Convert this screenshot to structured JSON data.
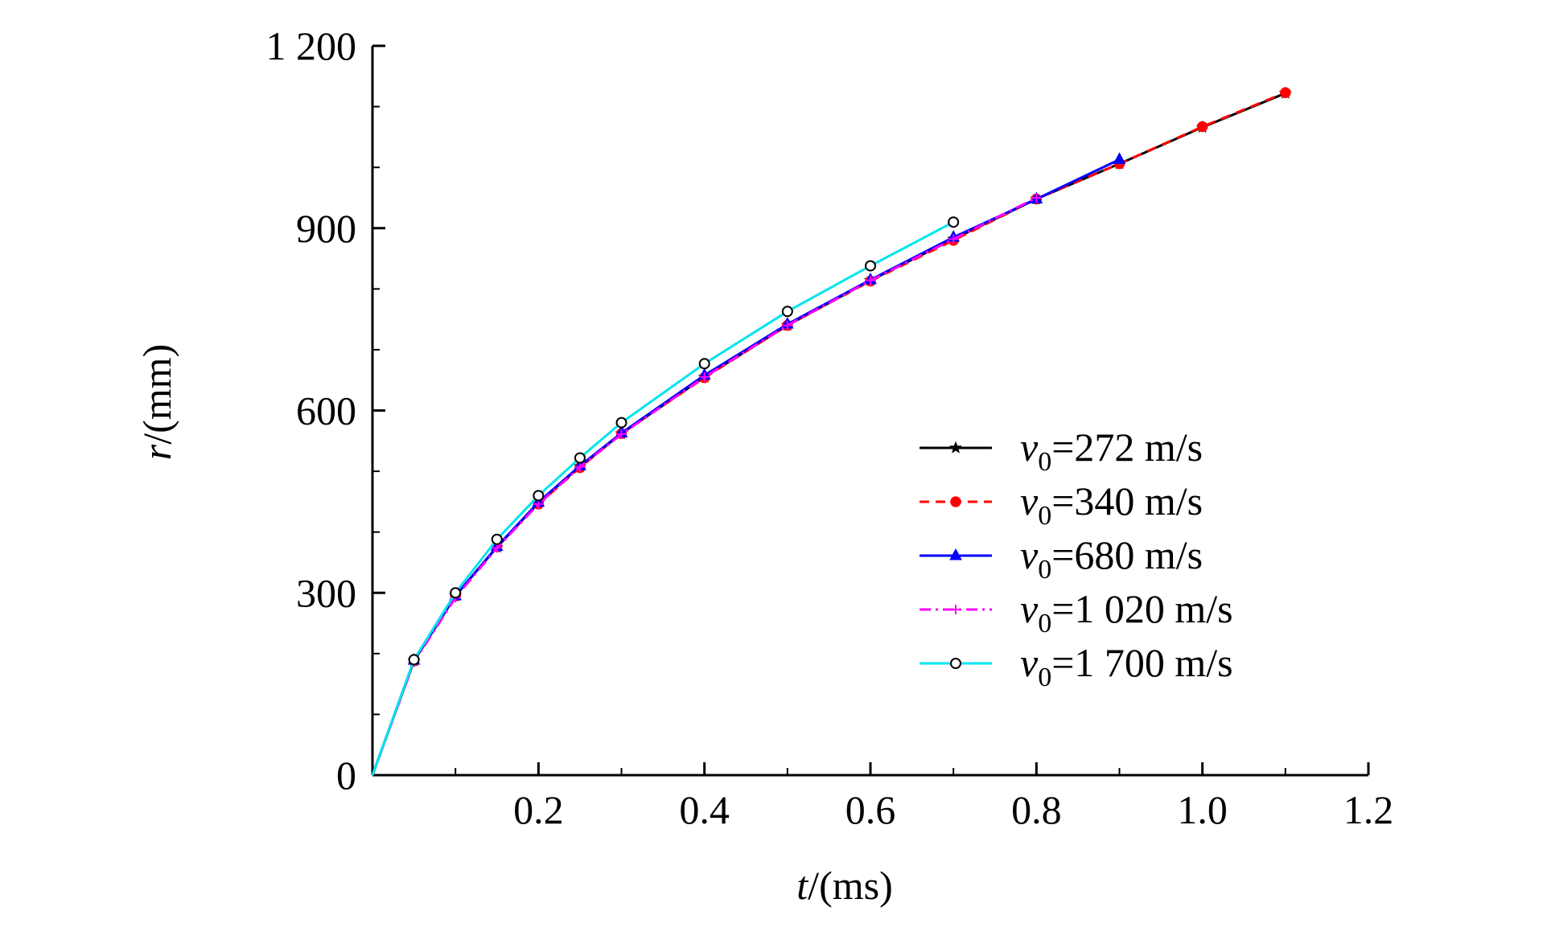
{
  "chart_data": {
    "type": "line",
    "xlabel": {
      "var": "t",
      "unit": "/(ms)"
    },
    "ylabel": {
      "var": "r",
      "unit": "/(mm)"
    },
    "xlim": [
      0,
      1.2
    ],
    "ylim": [
      0,
      1200
    ],
    "x_ticks": [
      {
        "value": 0.2,
        "label": "0.2"
      },
      {
        "value": 0.4,
        "label": "0.4"
      },
      {
        "value": 0.6,
        "label": "0.6"
      },
      {
        "value": 0.8,
        "label": "0.8"
      },
      {
        "value": 1.0,
        "label": "1.0"
      },
      {
        "value": 1.2,
        "label": "1.2"
      }
    ],
    "y_ticks": [
      {
        "value": 0,
        "label": "0"
      },
      {
        "value": 300,
        "label": "300"
      },
      {
        "value": 600,
        "label": "600"
      },
      {
        "value": 900,
        "label": "900"
      },
      {
        "value": 1200,
        "label": "1 200"
      }
    ],
    "grid": false,
    "legend_position": "right",
    "series": [
      {
        "name": "v0=272 m/s",
        "legend": {
          "var": "v",
          "sub": "0",
          "text": "=272 m/s"
        },
        "color": "#000000",
        "dash": "solid",
        "marker": "star",
        "x": [
          0,
          0.05,
          0.1,
          0.15,
          0.2,
          0.25,
          0.3,
          0.4,
          0.5,
          0.6,
          0.7,
          0.8,
          0.9,
          1.0,
          1.1
        ],
        "y": [
          0,
          188,
          295,
          375,
          448,
          508,
          562,
          655,
          740,
          814,
          882,
          948,
          1006,
          1066,
          1122
        ]
      },
      {
        "name": "v0=340 m/s",
        "legend": {
          "var": "v",
          "sub": "0",
          "text": "=340 m/s"
        },
        "color": "#ff0000",
        "dash": "dash",
        "marker": "circle-filled",
        "x": [
          0,
          0.05,
          0.1,
          0.15,
          0.2,
          0.25,
          0.3,
          0.4,
          0.5,
          0.6,
          0.7,
          0.8,
          0.9,
          1.0,
          1.1
        ],
        "y": [
          0,
          188,
          295,
          376,
          446,
          506,
          562,
          654,
          740,
          813,
          880,
          948,
          1006,
          1067,
          1123
        ]
      },
      {
        "name": "v0=680 m/s",
        "legend": {
          "var": "v",
          "sub": "0",
          "text": "=680 m/s"
        },
        "color": "#0000ff",
        "dash": "solid",
        "marker": "triangle",
        "x": [
          0,
          0.05,
          0.1,
          0.15,
          0.2,
          0.25,
          0.3,
          0.4,
          0.5,
          0.6,
          0.7,
          0.8,
          0.9
        ],
        "y": [
          0,
          189,
          295,
          376,
          449,
          509,
          563,
          658,
          742,
          815,
          885,
          948,
          1013
        ]
      },
      {
        "name": "v0=1 020 m/s",
        "legend": {
          "var": "v",
          "sub": "0",
          "text": "=1 020 m/s"
        },
        "color": "#ff00ff",
        "dash": "dashdot",
        "marker": "plus",
        "x": [
          0,
          0.05,
          0.1,
          0.15,
          0.2,
          0.25,
          0.3,
          0.4,
          0.5,
          0.6,
          0.7,
          0.8
        ],
        "y": [
          0,
          186,
          292,
          374,
          446,
          507,
          561,
          655,
          740,
          814,
          882,
          950
        ]
      },
      {
        "name": "v0=1 700 m/s",
        "legend": {
          "var": "v",
          "sub": "0",
          "text": "=1 700 m/s"
        },
        "color": "#00e5ee",
        "dash": "solid",
        "marker": "circle-open",
        "x": [
          0,
          0.05,
          0.1,
          0.15,
          0.2,
          0.25,
          0.3,
          0.4,
          0.5,
          0.6,
          0.7
        ],
        "y": [
          0,
          190,
          300,
          388,
          460,
          522,
          580,
          677,
          763,
          838,
          910
        ]
      }
    ]
  }
}
